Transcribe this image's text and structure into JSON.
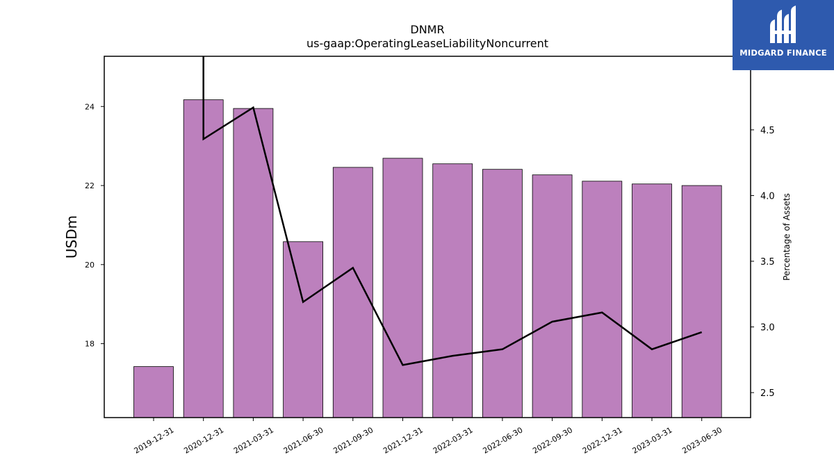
{
  "chart_data": {
    "type": "bar",
    "title": "DNMR",
    "subtitle": "us-gaap:OperatingLeaseLiabilityNoncurrent",
    "ylabel": "USDm",
    "y2label": "Percentage of Assets",
    "categories": [
      "2019-12-31",
      "2020-12-31",
      "2021-03-31",
      "2021-06-30",
      "2021-09-30",
      "2021-12-31",
      "2022-03-31",
      "2022-06-30",
      "2022-09-30",
      "2022-12-31",
      "2023-03-31",
      "2023-06-30"
    ],
    "ylim": [
      16.13,
      25.27
    ],
    "y2lim": [
      2.31,
      5.06
    ],
    "yticks": [
      18,
      20,
      22,
      24
    ],
    "y2ticks": [
      2.5,
      3.0,
      3.5,
      4.0,
      4.5
    ],
    "y2tick_labels": [
      "2.5",
      "3.0",
      "3.5",
      "4.0",
      "4.5"
    ],
    "bar_color": "#bc80bd",
    "line_color": "#000000",
    "series": [
      {
        "values": [
          17.42,
          24.17,
          23.95,
          20.58,
          22.46,
          22.69,
          22.55,
          22.41,
          22.27,
          22.11,
          22.04,
          22.0
        ]
      },
      {
        "values": [
          null,
          4.43,
          4.67,
          3.19,
          3.45,
          2.71,
          2.78,
          2.83,
          3.04,
          3.11,
          2.83,
          2.96
        ],
        "start": 6.5
      }
    ]
  },
  "logo": {
    "text": "MIDGARD FINANCE",
    "icon": "midgard-logo-icon"
  }
}
